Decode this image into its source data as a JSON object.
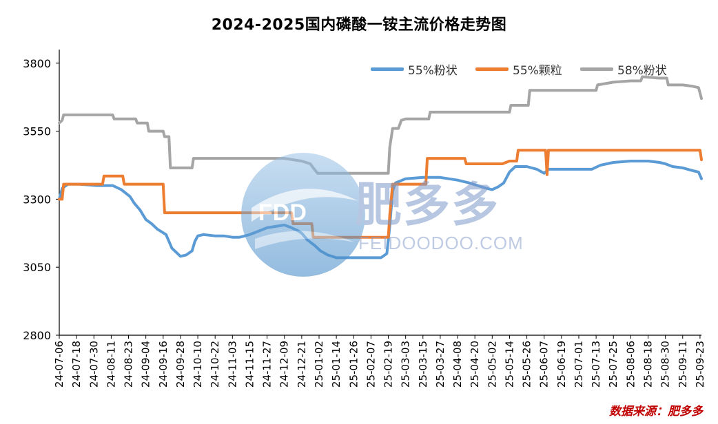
{
  "chart_data": {
    "type": "line",
    "title": "2024-2025国内磷酸一铵主流价格走势图",
    "xlabel": "",
    "ylabel": "",
    "ylim": [
      2800,
      3850
    ],
    "yticks": [
      2800,
      3050,
      3300,
      3550,
      3800
    ],
    "xlim": [
      "2024-07-06",
      "2025-09-24"
    ],
    "grid": false,
    "legend_position": "top-right",
    "xtick_labels": [
      "24-07-06",
      "24-07-18",
      "24-07-30",
      "24-08-11",
      "24-08-23",
      "24-09-04",
      "24-09-16",
      "24-09-28",
      "24-10-10",
      "24-10-22",
      "24-11-03",
      "24-11-15",
      "24-11-27",
      "24-12-09",
      "24-12-21",
      "25-01-02",
      "25-01-14",
      "25-01-26",
      "25-02-07",
      "25-02-19",
      "25-03-03",
      "25-03-15",
      "25-03-27",
      "25-04-08",
      "25-04-20",
      "25-05-02",
      "25-05-14",
      "25-05-26",
      "25-06-07",
      "25-06-19",
      "25-07-01",
      "25-07-13",
      "25-07-25",
      "25-08-06",
      "25-08-18",
      "25-08-30",
      "25-09-11",
      "25-09-23"
    ],
    "series": [
      {
        "name": "55%粉状",
        "color": "#5b9bd5",
        "points": [
          [
            "2024-07-06",
            3300
          ],
          [
            "2024-07-08",
            3340
          ],
          [
            "2024-07-12",
            3355
          ],
          [
            "2024-07-20",
            3355
          ],
          [
            "2024-08-01",
            3350
          ],
          [
            "2024-08-12",
            3350
          ],
          [
            "2024-08-18",
            3335
          ],
          [
            "2024-08-24",
            3310
          ],
          [
            "2024-08-27",
            3285
          ],
          [
            "2024-08-31",
            3260
          ],
          [
            "2024-09-04",
            3225
          ],
          [
            "2024-09-08",
            3210
          ],
          [
            "2024-09-12",
            3190
          ],
          [
            "2024-09-18",
            3170
          ],
          [
            "2024-09-22",
            3120
          ],
          [
            "2024-09-28",
            3090
          ],
          [
            "2024-10-02",
            3095
          ],
          [
            "2024-10-06",
            3110
          ],
          [
            "2024-10-08",
            3145
          ],
          [
            "2024-10-10",
            3165
          ],
          [
            "2024-10-14",
            3170
          ],
          [
            "2024-10-22",
            3165
          ],
          [
            "2024-10-28",
            3165
          ],
          [
            "2024-11-03",
            3160
          ],
          [
            "2024-11-08",
            3160
          ],
          [
            "2024-11-15",
            3170
          ],
          [
            "2024-11-20",
            3180
          ],
          [
            "2024-11-27",
            3195
          ],
          [
            "2024-12-03",
            3200
          ],
          [
            "2024-12-09",
            3205
          ],
          [
            "2024-12-14",
            3195
          ],
          [
            "2024-12-18",
            3185
          ],
          [
            "2024-12-21",
            3175
          ],
          [
            "2024-12-25",
            3150
          ],
          [
            "2024-12-30",
            3130
          ],
          [
            "2025-01-03",
            3110
          ],
          [
            "2025-01-08",
            3095
          ],
          [
            "2025-01-14",
            3085
          ],
          [
            "2025-01-26",
            3085
          ],
          [
            "2025-02-07",
            3085
          ],
          [
            "2025-02-14",
            3085
          ],
          [
            "2025-02-18",
            3100
          ],
          [
            "2025-02-20",
            3200
          ],
          [
            "2025-02-22",
            3330
          ],
          [
            "2025-02-24",
            3360
          ],
          [
            "2025-03-03",
            3375
          ],
          [
            "2025-03-15",
            3380
          ],
          [
            "2025-03-27",
            3380
          ],
          [
            "2025-04-08",
            3370
          ],
          [
            "2025-04-16",
            3360
          ],
          [
            "2025-04-22",
            3350
          ],
          [
            "2025-04-28",
            3340
          ],
          [
            "2025-05-02",
            3335
          ],
          [
            "2025-05-06",
            3345
          ],
          [
            "2025-05-10",
            3360
          ],
          [
            "2025-05-14",
            3400
          ],
          [
            "2025-05-18",
            3420
          ],
          [
            "2025-05-26",
            3420
          ],
          [
            "2025-06-02",
            3410
          ],
          [
            "2025-06-07",
            3395
          ],
          [
            "2025-06-10",
            3410
          ],
          [
            "2025-06-19",
            3410
          ],
          [
            "2025-07-01",
            3410
          ],
          [
            "2025-07-10",
            3410
          ],
          [
            "2025-07-16",
            3425
          ],
          [
            "2025-07-25",
            3435
          ],
          [
            "2025-08-06",
            3440
          ],
          [
            "2025-08-18",
            3440
          ],
          [
            "2025-08-26",
            3435
          ],
          [
            "2025-08-30",
            3430
          ],
          [
            "2025-09-04",
            3420
          ],
          [
            "2025-09-11",
            3415
          ],
          [
            "2025-09-18",
            3405
          ],
          [
            "2025-09-22",
            3400
          ],
          [
            "2025-09-24",
            3375
          ]
        ]
      },
      {
        "name": "55%颗粒",
        "color": "#ed7d31",
        "points": [
          [
            "2024-07-06",
            3300
          ],
          [
            "2024-07-08",
            3300
          ],
          [
            "2024-07-09",
            3355
          ],
          [
            "2024-07-20",
            3355
          ],
          [
            "2024-08-05",
            3355
          ],
          [
            "2024-08-06",
            3385
          ],
          [
            "2024-08-14",
            3385
          ],
          [
            "2024-08-19",
            3385
          ],
          [
            "2024-08-20",
            3355
          ],
          [
            "2024-08-30",
            3355
          ],
          [
            "2024-09-16",
            3355
          ],
          [
            "2024-09-17",
            3250
          ],
          [
            "2024-10-10",
            3250
          ],
          [
            "2024-11-03",
            3250
          ],
          [
            "2024-11-27",
            3250
          ],
          [
            "2024-12-14",
            3250
          ],
          [
            "2024-12-15",
            3210
          ],
          [
            "2024-12-21",
            3210
          ],
          [
            "2024-12-28",
            3210
          ],
          [
            "2024-12-29",
            3160
          ],
          [
            "2025-01-14",
            3160
          ],
          [
            "2025-02-07",
            3160
          ],
          [
            "2025-02-19",
            3160
          ],
          [
            "2025-02-20",
            3240
          ],
          [
            "2025-02-22",
            3355
          ],
          [
            "2025-03-10",
            3355
          ],
          [
            "2025-03-17",
            3355
          ],
          [
            "2025-03-18",
            3450
          ],
          [
            "2025-04-08",
            3450
          ],
          [
            "2025-04-13",
            3450
          ],
          [
            "2025-04-14",
            3430
          ],
          [
            "2025-05-08",
            3430
          ],
          [
            "2025-05-09",
            3430
          ],
          [
            "2025-05-14",
            3440
          ],
          [
            "2025-05-19",
            3440
          ],
          [
            "2025-05-20",
            3480
          ],
          [
            "2025-06-08",
            3480
          ],
          [
            "2025-06-09",
            3390
          ],
          [
            "2025-06-10",
            3480
          ],
          [
            "2025-06-19",
            3480
          ],
          [
            "2025-07-13",
            3480
          ],
          [
            "2025-08-06",
            3480
          ],
          [
            "2025-09-11",
            3480
          ],
          [
            "2025-09-23",
            3480
          ],
          [
            "2025-09-24",
            3445
          ]
        ]
      },
      {
        "name": "58%粉状",
        "color": "#a5a5a5",
        "points": [
          [
            "2024-07-06",
            3580
          ],
          [
            "2024-07-08",
            3590
          ],
          [
            "2024-07-09",
            3610
          ],
          [
            "2024-07-20",
            3610
          ],
          [
            "2024-08-06",
            3610
          ],
          [
            "2024-08-12",
            3610
          ],
          [
            "2024-08-13",
            3595
          ],
          [
            "2024-08-20",
            3595
          ],
          [
            "2024-08-28",
            3595
          ],
          [
            "2024-08-29",
            3580
          ],
          [
            "2024-09-05",
            3580
          ],
          [
            "2024-09-06",
            3550
          ],
          [
            "2024-09-16",
            3550
          ],
          [
            "2024-09-17",
            3530
          ],
          [
            "2024-09-20",
            3530
          ],
          [
            "2024-09-21",
            3415
          ],
          [
            "2024-10-06",
            3415
          ],
          [
            "2024-10-07",
            3450
          ],
          [
            "2024-10-22",
            3450
          ],
          [
            "2024-11-15",
            3450
          ],
          [
            "2024-12-09",
            3450
          ],
          [
            "2024-12-21",
            3440
          ],
          [
            "2024-12-27",
            3430
          ],
          [
            "2024-12-29",
            3415
          ],
          [
            "2025-01-01",
            3395
          ],
          [
            "2025-01-20",
            3395
          ],
          [
            "2025-02-10",
            3395
          ],
          [
            "2025-02-19",
            3395
          ],
          [
            "2025-02-20",
            3490
          ],
          [
            "2025-02-22",
            3560
          ],
          [
            "2025-02-26",
            3560
          ],
          [
            "2025-02-28",
            3590
          ],
          [
            "2025-03-03",
            3595
          ],
          [
            "2025-03-19",
            3595
          ],
          [
            "2025-03-20",
            3620
          ],
          [
            "2025-04-08",
            3620
          ],
          [
            "2025-05-14",
            3620
          ],
          [
            "2025-05-15",
            3645
          ],
          [
            "2025-05-27",
            3645
          ],
          [
            "2025-05-28",
            3700
          ],
          [
            "2025-06-19",
            3700
          ],
          [
            "2025-07-01",
            3700
          ],
          [
            "2025-07-13",
            3700
          ],
          [
            "2025-07-14",
            3720
          ],
          [
            "2025-07-25",
            3730
          ],
          [
            "2025-08-06",
            3735
          ],
          [
            "2025-08-13",
            3735
          ],
          [
            "2025-08-14",
            3750
          ],
          [
            "2025-08-26",
            3745
          ],
          [
            "2025-08-31",
            3745
          ],
          [
            "2025-09-01",
            3720
          ],
          [
            "2025-09-11",
            3720
          ],
          [
            "2025-09-18",
            3715
          ],
          [
            "2025-09-22",
            3710
          ],
          [
            "2025-09-24",
            3670
          ]
        ]
      }
    ]
  },
  "watermark": {
    "logo_text": "FDD",
    "brand": "肥多多",
    "site": "FEIDOODOO.COM"
  },
  "source_note": "数据来源：肥多多"
}
